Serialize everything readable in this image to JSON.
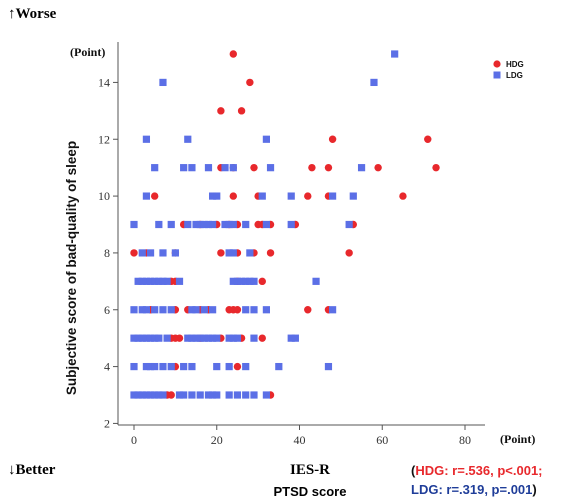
{
  "annotations": {
    "worse": "↑Worse",
    "better": "↓Better"
  },
  "stats": {
    "hdg": "HDG: r=.536, p<.001;",
    "ldg": "LDG: r=.319, p=.001",
    "open_paren": "(",
    "close_paren": ")"
  },
  "chart_data": {
    "type": "scatter",
    "xlabel": "IES-R",
    "xlabel_sub": "PTSD score",
    "ylabel": "Subjective score of bad-quality of sleep",
    "x_unit": "(Point)",
    "y_unit": "(Point)",
    "xlim": [
      -4,
      82
    ],
    "ylim": [
      2,
      15.4
    ],
    "xticks": [
      0,
      20,
      40,
      60,
      80
    ],
    "yticks": [
      2,
      4,
      6,
      8,
      10,
      12,
      14
    ],
    "grid": false,
    "legend_position": "top-right",
    "series": [
      {
        "name": "HDG",
        "color": "#e8282c",
        "marker": "circle",
        "points": [
          [
            24,
            15
          ],
          [
            28,
            14
          ],
          [
            21,
            13
          ],
          [
            26,
            13
          ],
          [
            48,
            12
          ],
          [
            71,
            12
          ],
          [
            21,
            11
          ],
          [
            24,
            11
          ],
          [
            29,
            11
          ],
          [
            43,
            11
          ],
          [
            47,
            11
          ],
          [
            59,
            11
          ],
          [
            73,
            11
          ],
          [
            5,
            10
          ],
          [
            24,
            10
          ],
          [
            30,
            10
          ],
          [
            42,
            10
          ],
          [
            47,
            10
          ],
          [
            65,
            10
          ],
          [
            12,
            9
          ],
          [
            16,
            9
          ],
          [
            20,
            9
          ],
          [
            23,
            9
          ],
          [
            25,
            9
          ],
          [
            30,
            9
          ],
          [
            31,
            9
          ],
          [
            33,
            9
          ],
          [
            39,
            9
          ],
          [
            53,
            9
          ],
          [
            0,
            8
          ],
          [
            3,
            8
          ],
          [
            10,
            8
          ],
          [
            21,
            8
          ],
          [
            25,
            8
          ],
          [
            29,
            8
          ],
          [
            33,
            8
          ],
          [
            52,
            8
          ],
          [
            9,
            7
          ],
          [
            10,
            7
          ],
          [
            25,
            7
          ],
          [
            31,
            7
          ],
          [
            4,
            6
          ],
          [
            10,
            6
          ],
          [
            13,
            6
          ],
          [
            16,
            6
          ],
          [
            18,
            6
          ],
          [
            23,
            6
          ],
          [
            24,
            6
          ],
          [
            25,
            6
          ],
          [
            42,
            6
          ],
          [
            47,
            6
          ],
          [
            9,
            5
          ],
          [
            10,
            5
          ],
          [
            11,
            5
          ],
          [
            16,
            5
          ],
          [
            21,
            5
          ],
          [
            26,
            5
          ],
          [
            31,
            5
          ],
          [
            10,
            4
          ],
          [
            25,
            4
          ],
          [
            8,
            3
          ],
          [
            9,
            3
          ],
          [
            33,
            3
          ]
        ]
      },
      {
        "name": "LDG",
        "color": "#5b6fe6",
        "marker": "square",
        "points": [
          [
            63,
            15
          ],
          [
            7,
            14
          ],
          [
            58,
            14
          ],
          [
            3,
            12
          ],
          [
            13,
            12
          ],
          [
            32,
            12
          ],
          [
            5,
            11
          ],
          [
            12,
            11
          ],
          [
            14,
            11
          ],
          [
            18,
            11
          ],
          [
            22,
            11
          ],
          [
            24,
            11
          ],
          [
            33,
            11
          ],
          [
            55,
            11
          ],
          [
            3,
            10
          ],
          [
            19,
            10
          ],
          [
            20,
            10
          ],
          [
            31,
            10
          ],
          [
            38,
            10
          ],
          [
            48,
            10
          ],
          [
            53,
            10
          ],
          [
            0,
            9
          ],
          [
            6,
            9
          ],
          [
            9,
            9
          ],
          [
            13,
            9
          ],
          [
            15,
            9
          ],
          [
            16,
            9
          ],
          [
            17,
            9
          ],
          [
            18,
            9
          ],
          [
            19,
            9
          ],
          [
            22,
            9
          ],
          [
            23,
            9
          ],
          [
            24,
            9
          ],
          [
            27,
            9
          ],
          [
            32,
            9
          ],
          [
            38,
            9
          ],
          [
            52,
            9
          ],
          [
            2,
            8
          ],
          [
            4,
            8
          ],
          [
            7,
            8
          ],
          [
            10,
            8
          ],
          [
            23,
            8
          ],
          [
            24,
            8
          ],
          [
            28,
            8
          ],
          [
            1,
            7
          ],
          [
            2,
            7
          ],
          [
            3,
            7
          ],
          [
            4,
            7
          ],
          [
            5,
            7
          ],
          [
            6,
            7
          ],
          [
            7,
            7
          ],
          [
            8,
            7
          ],
          [
            11,
            7
          ],
          [
            24,
            7
          ],
          [
            25,
            7
          ],
          [
            26,
            7
          ],
          [
            27,
            7
          ],
          [
            28,
            7
          ],
          [
            29,
            7
          ],
          [
            44,
            7
          ],
          [
            0,
            6
          ],
          [
            2,
            6
          ],
          [
            3,
            6
          ],
          [
            5,
            6
          ],
          [
            7,
            6
          ],
          [
            9,
            6
          ],
          [
            14,
            6
          ],
          [
            15,
            6
          ],
          [
            17,
            6
          ],
          [
            19,
            6
          ],
          [
            27,
            6
          ],
          [
            29,
            6
          ],
          [
            32,
            6
          ],
          [
            48,
            6
          ],
          [
            0,
            5
          ],
          [
            1,
            5
          ],
          [
            2,
            5
          ],
          [
            3,
            5
          ],
          [
            4,
            5
          ],
          [
            5,
            5
          ],
          [
            6,
            5
          ],
          [
            8,
            5
          ],
          [
            13,
            5
          ],
          [
            14,
            5
          ],
          [
            15,
            5
          ],
          [
            16,
            5
          ],
          [
            17,
            5
          ],
          [
            18,
            5
          ],
          [
            19,
            5
          ],
          [
            20,
            5
          ],
          [
            23,
            5
          ],
          [
            24,
            5
          ],
          [
            25,
            5
          ],
          [
            29,
            5
          ],
          [
            38,
            5
          ],
          [
            39,
            5
          ],
          [
            0,
            4
          ],
          [
            3,
            4
          ],
          [
            4,
            4
          ],
          [
            5,
            4
          ],
          [
            7,
            4
          ],
          [
            9,
            4
          ],
          [
            12,
            4
          ],
          [
            14,
            4
          ],
          [
            20,
            4
          ],
          [
            23,
            4
          ],
          [
            27,
            4
          ],
          [
            35,
            4
          ],
          [
            47,
            4
          ],
          [
            0,
            3
          ],
          [
            1,
            3
          ],
          [
            2,
            3
          ],
          [
            3,
            3
          ],
          [
            4,
            3
          ],
          [
            5,
            3
          ],
          [
            6,
            3
          ],
          [
            7,
            3
          ],
          [
            11,
            3
          ],
          [
            12,
            3
          ],
          [
            14,
            3
          ],
          [
            16,
            3
          ],
          [
            18,
            3
          ],
          [
            19,
            3
          ],
          [
            20,
            3
          ],
          [
            23,
            3
          ],
          [
            25,
            3
          ],
          [
            27,
            3
          ],
          [
            29,
            3
          ],
          [
            32,
            3
          ]
        ]
      }
    ]
  }
}
